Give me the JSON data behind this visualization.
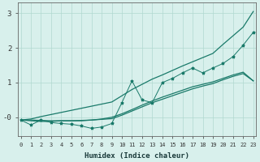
{
  "x_values": [
    0,
    1,
    2,
    3,
    4,
    5,
    6,
    7,
    8,
    9,
    10,
    11,
    12,
    13,
    14,
    15,
    16,
    17,
    18,
    19,
    20,
    21,
    22,
    23
  ],
  "upper_envelope": [
    -0.08,
    -0.05,
    0.02,
    0.08,
    0.14,
    0.2,
    0.26,
    0.32,
    0.38,
    0.44,
    0.62,
    0.8,
    0.95,
    1.1,
    1.22,
    1.35,
    1.48,
    1.6,
    1.72,
    1.84,
    2.1,
    2.35,
    2.6,
    3.05
  ],
  "lower_envelope": [
    -0.08,
    -0.1,
    -0.12,
    -0.12,
    -0.1,
    -0.1,
    -0.1,
    -0.08,
    -0.05,
    0.0,
    0.1,
    0.22,
    0.35,
    0.47,
    0.58,
    0.68,
    0.78,
    0.88,
    0.95,
    1.02,
    1.12,
    1.22,
    1.3,
    1.05
  ],
  "smooth_line": [
    -0.08,
    -0.08,
    -0.09,
    -0.1,
    -0.1,
    -0.1,
    -0.09,
    -0.08,
    -0.06,
    -0.04,
    0.06,
    0.18,
    0.3,
    0.42,
    0.52,
    0.62,
    0.72,
    0.82,
    0.9,
    0.97,
    1.08,
    1.18,
    1.26,
    1.05
  ],
  "jagged_line": [
    -0.08,
    -0.22,
    -0.08,
    -0.15,
    -0.18,
    -0.2,
    -0.25,
    -0.32,
    -0.28,
    -0.18,
    0.42,
    1.05,
    0.5,
    0.42,
    1.0,
    1.12,
    1.28,
    1.42,
    1.28,
    1.42,
    1.55,
    1.75,
    2.08,
    2.45
  ],
  "line_color": "#1a7a6a",
  "bg_color": "#d8f0ec",
  "grid_color": "#b0d8d0",
  "xlabel": "Humidex (Indice chaleur)",
  "xlim": [
    -0.3,
    23.3
  ],
  "ylim": [
    -0.55,
    3.3
  ],
  "xtick_labels": [
    "0",
    "1",
    "2",
    "3",
    "4",
    "5",
    "6",
    "7",
    "8",
    "9",
    "10",
    "11",
    "12",
    "13",
    "14",
    "15",
    "16",
    "17",
    "18",
    "19",
    "20",
    "21",
    "22",
    "23"
  ],
  "ytick_positions": [
    0,
    1,
    2,
    3
  ],
  "ytick_labels": [
    "-0",
    "1",
    "2",
    "3"
  ]
}
